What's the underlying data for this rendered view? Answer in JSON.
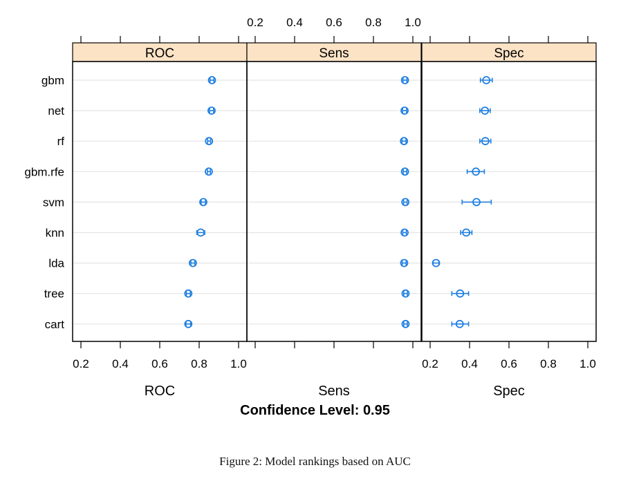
{
  "chart_data": {
    "type": "dotplot-ci",
    "models": [
      "gbm",
      "net",
      "rf",
      "gbm.rfe",
      "svm",
      "knn",
      "lda",
      "tree",
      "cart"
    ],
    "xlim": [
      0.2,
      1.0
    ],
    "ticks": [
      0.2,
      0.4,
      0.6,
      0.8,
      1.0
    ],
    "tick_labels": [
      "0.2",
      "0.4",
      "0.6",
      "0.8",
      "1.0"
    ],
    "panels": [
      {
        "name": "ROC",
        "xlabel": "ROC",
        "estimates": [
          0.865,
          0.863,
          0.85,
          0.849,
          0.821,
          0.808,
          0.768,
          0.745,
          0.745
        ],
        "lower": [
          0.855,
          0.853,
          0.843,
          0.842,
          0.81,
          0.788,
          0.758,
          0.735,
          0.733
        ],
        "upper": [
          0.875,
          0.873,
          0.858,
          0.857,
          0.832,
          0.828,
          0.778,
          0.755,
          0.757
        ]
      },
      {
        "name": "Sens",
        "xlabel": "Sens",
        "estimates": [
          0.96,
          0.958,
          0.955,
          0.96,
          0.962,
          0.958,
          0.956,
          0.963,
          0.963
        ],
        "lower": [
          0.95,
          0.948,
          0.945,
          0.951,
          0.953,
          0.949,
          0.946,
          0.954,
          0.954
        ],
        "upper": [
          0.97,
          0.968,
          0.965,
          0.969,
          0.971,
          0.967,
          0.966,
          0.972,
          0.972
        ]
      },
      {
        "name": "Spec",
        "xlabel": "Spec",
        "estimates": [
          0.485,
          0.478,
          0.48,
          0.432,
          0.435,
          0.383,
          0.23,
          0.352,
          0.35
        ],
        "lower": [
          0.455,
          0.452,
          0.452,
          0.388,
          0.362,
          0.355,
          0.215,
          0.31,
          0.31
        ],
        "upper": [
          0.515,
          0.505,
          0.508,
          0.475,
          0.51,
          0.412,
          0.245,
          0.395,
          0.395
        ]
      }
    ],
    "title": "Confidence Level: 0.95",
    "grid": true,
    "colors": {
      "points": "#1f7fe0",
      "strip": "#fde3c6",
      "gridline": "#e4e4e4"
    }
  },
  "caption": "Figure 2: Model rankings based on AUC"
}
